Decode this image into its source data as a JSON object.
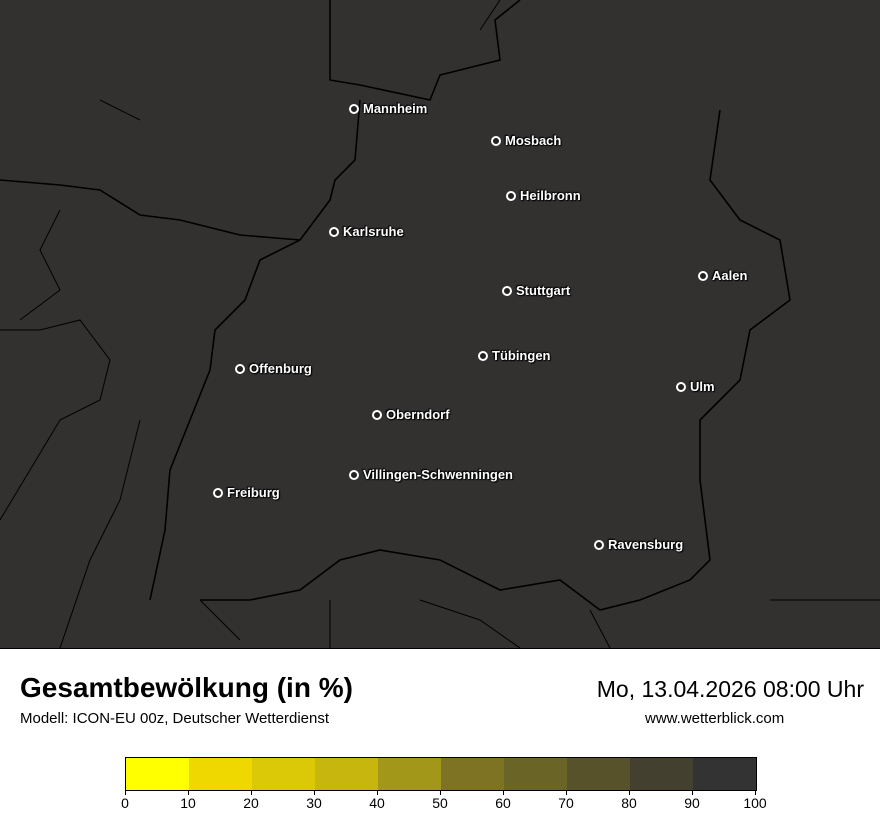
{
  "header": {
    "title": "Gesamtbewölkung (in %)",
    "subtitle": "Modell: ICON-EU 00z, Deutscher Wetterdienst",
    "datetime": "Mo, 13.04.2026 08:00 Uhr",
    "website": "www.wetterblick.com"
  },
  "map": {
    "background": "#323130",
    "cities": [
      {
        "name": "Mannheim"
      },
      {
        "name": "Mosbach"
      },
      {
        "name": "Heilbronn"
      },
      {
        "name": "Karlsruhe"
      },
      {
        "name": "Aalen"
      },
      {
        "name": "Stuttgart"
      },
      {
        "name": "Tübingen"
      },
      {
        "name": "Offenburg"
      },
      {
        "name": "Ulm"
      },
      {
        "name": "Oberndorf"
      },
      {
        "name": "Villingen-Schwenningen"
      },
      {
        "name": "Freiburg"
      },
      {
        "name": "Ravensburg"
      }
    ]
  },
  "legend": {
    "ticks": [
      "0",
      "10",
      "20",
      "30",
      "40",
      "50",
      "60",
      "70",
      "80",
      "90",
      "100"
    ],
    "colors": [
      "#ffff00",
      "#efd800",
      "#dbc806",
      "#c6b60e",
      "#a29718",
      "#7d7322",
      "#6a6427",
      "#575229",
      "#43402f",
      "#333333"
    ]
  }
}
